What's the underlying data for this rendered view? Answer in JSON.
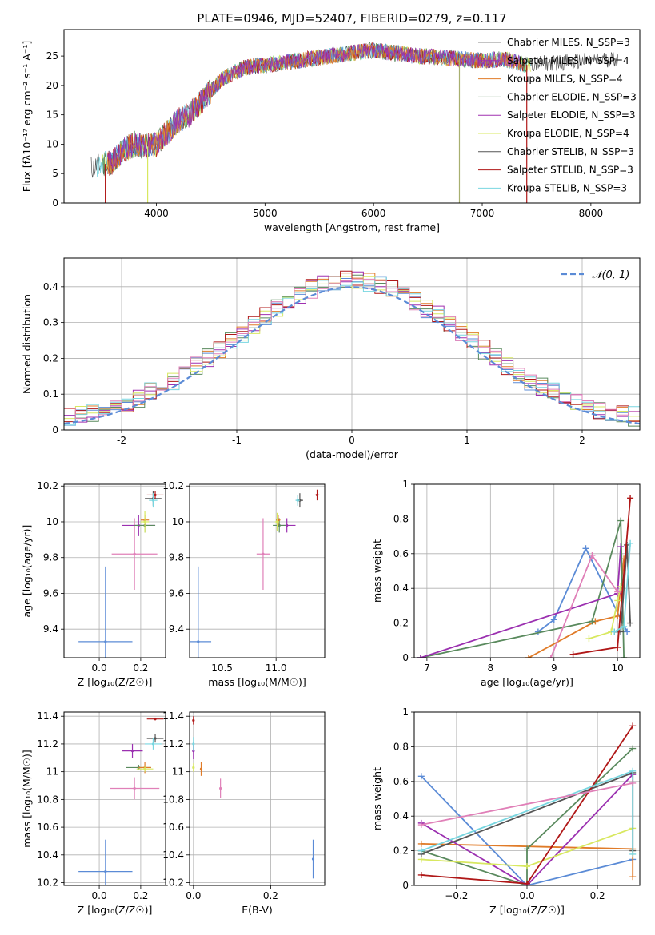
{
  "figure": {
    "title": "PLATE=0946, MJD=52407, FIBERID=0279, z=0.117"
  },
  "colors": {
    "Chabrier MILES": "#5b8bd6",
    "Salpeter MILES": "#9b30b0",
    "Kroupa MILES": "#e07b28",
    "Chabrier ELODIE": "#5a8a5e",
    "Salpeter ELODIE": "#a030b0",
    "Kroupa ELODIE": "#d8e860",
    "Chabrier STELIB": "#555555",
    "Salpeter STELIB": "#b01818",
    "Kroupa STELIB": "#78d6e0",
    "pink": "#e080b8",
    "gaussian": "#5b8bd6"
  },
  "chart_data": [
    {
      "id": "spectrum",
      "type": "line",
      "title": "PLATE=0946, MJD=52407, FIBERID=0279, z=0.117",
      "xlabel": "wavelength [Angstrom, rest frame]",
      "ylabel": "Flux [fλ10⁻¹⁷ erg cm⁻² s⁻¹ A⁻¹]",
      "xlim": [
        3150,
        8450
      ],
      "ylim": [
        0,
        29.5
      ],
      "xticks": [
        4000,
        5000,
        6000,
        7000,
        8000
      ],
      "yticks": [
        0,
        5,
        10,
        15,
        20,
        25
      ],
      "legend_position": "right",
      "legend": [
        {
          "label": "Chabrier MILES, N_SSP=3",
          "color": "#888888"
        },
        {
          "label": "Salpeter MILES, N_SSP=4",
          "color": "#9b30b0"
        },
        {
          "label": "Kroupa MILES, N_SSP=4",
          "color": "#e07b28"
        },
        {
          "label": "Chabrier ELODIE, N_SSP=3",
          "color": "#5a8a5e"
        },
        {
          "label": "Salpeter ELODIE, N_SSP=3",
          "color": "#a030b0"
        },
        {
          "label": "Kroupa ELODIE, N_SSP=4",
          "color": "#d8e860"
        },
        {
          "label": "Chabrier STELIB, N_SSP=3",
          "color": "#555555"
        },
        {
          "label": "Salpeter STELIB, N_SSP=3",
          "color": "#b01818"
        },
        {
          "label": "Kroupa STELIB, N_SSP=3",
          "color": "#78d6e0"
        }
      ],
      "continuum": {
        "x": [
          3400,
          3600,
          3700,
          3800,
          3900,
          4000,
          4100,
          4200,
          4300,
          4400,
          4500,
          4600,
          4800,
          5000,
          5200,
          5400,
          5600,
          5800,
          6000,
          6200,
          6400,
          6600,
          6800,
          7000,
          7200,
          7400,
          7600,
          7800,
          8000,
          8200
        ],
        "y": [
          6,
          7,
          9,
          10,
          9.5,
          10,
          12,
          14,
          15,
          17,
          19,
          21,
          23,
          23.5,
          24,
          24.5,
          25,
          25.5,
          26,
          25.5,
          25,
          24.8,
          24.5,
          24.2,
          24.5,
          23.5,
          23.8,
          24,
          24.2,
          24.5
        ]
      },
      "line_series": [
        {
          "name": "Chabrier STELIB",
          "color": "#555555",
          "x_range": [
            3400,
            8250
          ]
        },
        {
          "name": "Kroupa STELIB",
          "color": "#78d6e0",
          "x_range": [
            3450,
            7450
          ]
        },
        {
          "name": "Kroupa ELODIE",
          "color": "#d8e860",
          "x_range": [
            3500,
            7450
          ]
        },
        {
          "name": "Chabrier ELODIE",
          "color": "#5a8a5e",
          "x_range": [
            3500,
            7450
          ]
        },
        {
          "name": "Salpeter STELIB",
          "color": "#b01818",
          "x_range": [
            3550,
            7400
          ]
        },
        {
          "name": "Chabrier MILES",
          "color": "#5b8bd6",
          "x_range": [
            3550,
            7350
          ]
        },
        {
          "name": "Kroupa MILES",
          "color": "#e07b28",
          "x_range": [
            3550,
            7350
          ]
        },
        {
          "name": "Salpeter MILES",
          "color": "#9b30b0",
          "x_range": [
            3550,
            7350
          ]
        }
      ],
      "spikes": [
        {
          "x": 3530,
          "color": "#b01818"
        },
        {
          "x": 3920,
          "color": "#d8e860"
        },
        {
          "x": 6790,
          "color": "#a8b070"
        },
        {
          "x": 7410,
          "color": "#b01818"
        }
      ]
    },
    {
      "id": "residual_hist",
      "type": "histogram",
      "xlabel": "(data-model)/error",
      "ylabel": "Normed distribution",
      "xlim": [
        -2.5,
        2.5
      ],
      "ylim": [
        0,
        0.48
      ],
      "xticks": [
        -2,
        -1,
        0,
        1,
        2
      ],
      "yticks": [
        0.0,
        0.1,
        0.2,
        0.3,
        0.4
      ],
      "bin_width": 0.1,
      "grid": true,
      "legend": [
        {
          "label": "𝒩(0, 1)",
          "color": "#5b8bd6",
          "style": "dashed"
        }
      ],
      "gaussian": {
        "mean": 0,
        "sigma": 1
      },
      "series": [
        {
          "name": "Chabrier MILES",
          "color": "#5b8bd6",
          "seed": 1
        },
        {
          "name": "Kroupa MILES",
          "color": "#e07b28",
          "seed": 2
        },
        {
          "name": "Chabrier ELODIE",
          "color": "#5a8a5e",
          "seed": 3
        },
        {
          "name": "Salpeter ELODIE",
          "color": "#a030b0",
          "seed": 4
        },
        {
          "name": "Kroupa ELODIE",
          "color": "#d8e860",
          "seed": 5
        },
        {
          "name": "Salpeter STELIB",
          "color": "#b01818",
          "seed": 6
        },
        {
          "name": "Kroupa STELIB",
          "color": "#78d6e0",
          "seed": 7
        },
        {
          "name": "pink",
          "color": "#e080b8",
          "seed": 8
        }
      ]
    },
    {
      "id": "age_vs_Z",
      "type": "scatter",
      "xlabel": "Z [log₁₀(Z/Z☉)]",
      "ylabel": "age  [log₁₀(age/yr)]",
      "xlim": [
        -0.17,
        0.32
      ],
      "ylim": [
        9.24,
        10.21
      ],
      "xticks": [
        0.0,
        0.2
      ],
      "xticklabels": [
        "0.0",
        "0.2"
      ],
      "yticks": [
        9.4,
        9.6,
        9.8,
        10.0,
        10.2
      ],
      "grid": true,
      "points": [
        {
          "x": 0.03,
          "y": 9.33,
          "xerr": 0.13,
          "yerr": 0.42,
          "color": "#5b8bd6"
        },
        {
          "x": 0.17,
          "y": 9.82,
          "xerr": 0.11,
          "yerr": 0.2,
          "color": "#e080b8"
        },
        {
          "x": 0.19,
          "y": 9.98,
          "xerr": 0.08,
          "yerr": 0.06,
          "color": "#9b30b0"
        },
        {
          "x": 0.22,
          "y": 9.98,
          "xerr": 0.05,
          "yerr": 0.04,
          "color": "#5a8a5e"
        },
        {
          "x": 0.22,
          "y": 10.01,
          "xerr": 0.02,
          "yerr": 0.03,
          "color": "#e07b28"
        },
        {
          "x": 0.22,
          "y": 10.0,
          "xerr": 0.02,
          "yerr": 0.06,
          "color": "#d8e860"
        },
        {
          "x": 0.26,
          "y": 10.13,
          "xerr": 0.04,
          "yerr": 0.04,
          "color": "#555555"
        },
        {
          "x": 0.27,
          "y": 10.15,
          "xerr": 0.04,
          "yerr": 0.02,
          "color": "#b01818"
        },
        {
          "x": 0.26,
          "y": 10.12,
          "xerr": 0.02,
          "yerr": 0.04,
          "color": "#78d6e0"
        }
      ]
    },
    {
      "id": "age_vs_mass",
      "type": "scatter",
      "xlabel": "mass [log₁₀(M/M☉)]",
      "ylabel": "",
      "xlim": [
        10.2,
        11.45
      ],
      "ylim": [
        9.24,
        10.21
      ],
      "xticks": [
        10.5,
        11.0
      ],
      "xticklabels": [
        "10.5",
        "11.0"
      ],
      "yticks": [
        9.4,
        9.6,
        9.8,
        10.0,
        10.2
      ],
      "grid": true,
      "points": [
        {
          "x": 10.28,
          "y": 9.33,
          "xerr": 0.12,
          "yerr": 0.42,
          "color": "#5b8bd6"
        },
        {
          "x": 10.88,
          "y": 9.82,
          "xerr": 0.06,
          "yerr": 0.2,
          "color": "#e080b8"
        },
        {
          "x": 11.1,
          "y": 9.98,
          "xerr": 0.08,
          "yerr": 0.04,
          "color": "#9b30b0"
        },
        {
          "x": 11.03,
          "y": 9.98,
          "xerr": 0.06,
          "yerr": 0.04,
          "color": "#5a8a5e"
        },
        {
          "x": 11.02,
          "y": 10.01,
          "xerr": 0.02,
          "yerr": 0.03,
          "color": "#e07b28"
        },
        {
          "x": 11.01,
          "y": 10.0,
          "xerr": 0.02,
          "yerr": 0.05,
          "color": "#d8e860"
        },
        {
          "x": 11.22,
          "y": 10.12,
          "xerr": 0.03,
          "yerr": 0.04,
          "color": "#555555"
        },
        {
          "x": 11.38,
          "y": 10.15,
          "xerr": 0.02,
          "yerr": 0.03,
          "color": "#b01818"
        },
        {
          "x": 11.2,
          "y": 10.12,
          "xerr": 0.02,
          "yerr": 0.03,
          "color": "#78d6e0"
        }
      ]
    },
    {
      "id": "weight_vs_age",
      "type": "line",
      "xlabel": "age  [log₁₀(age/yr)]",
      "ylabel": "mass weight",
      "xlim": [
        6.8,
        10.35
      ],
      "ylim": [
        0,
        1.0
      ],
      "xticks": [
        7,
        8,
        9,
        10
      ],
      "xticklabels": [
        "7",
        "8",
        "9",
        "10"
      ],
      "yticks": [
        0.0,
        0.2,
        0.4,
        0.6,
        0.8,
        1.0
      ],
      "grid": true,
      "series": [
        {
          "color": "#5b8bd6",
          "x": [
            8.75,
            9.0,
            9.5,
            10.15
          ],
          "y": [
            0.15,
            0.22,
            0.63,
            0.15
          ]
        },
        {
          "color": "#e07b28",
          "x": [
            8.6,
            9.65,
            10.0,
            10.1
          ],
          "y": [
            0.0,
            0.21,
            0.24,
            0.57
          ]
        },
        {
          "color": "#5a8a5e",
          "x": [
            6.9,
            9.6,
            10.05,
            10.1
          ],
          "y": [
            0.0,
            0.21,
            0.79,
            0.0
          ]
        },
        {
          "color": "#9b30b0",
          "x": [
            6.9,
            10.0,
            10.05
          ],
          "y": [
            0.0,
            0.37,
            0.64
          ]
        },
        {
          "color": "#d8e860",
          "x": [
            9.55,
            9.9,
            10.0,
            10.05
          ],
          "y": [
            0.11,
            0.15,
            0.33,
            0.41
          ]
        },
        {
          "color": "#555555",
          "x": [
            9.95,
            10.05,
            10.15,
            10.2
          ],
          "y": [
            0.15,
            0.15,
            0.65,
            0.2
          ]
        },
        {
          "color": "#b01818",
          "x": [
            9.3,
            10.0,
            10.2
          ],
          "y": [
            0.02,
            0.06,
            0.92
          ]
        },
        {
          "color": "#78d6e0",
          "x": [
            9.95,
            10.1,
            10.2
          ],
          "y": [
            0.15,
            0.18,
            0.66
          ]
        },
        {
          "color": "#e080b8",
          "x": [
            8.95,
            9.6,
            10.0
          ],
          "y": [
            0.0,
            0.59,
            0.38
          ]
        }
      ]
    },
    {
      "id": "mass_vs_Z",
      "type": "scatter",
      "xlabel": "Z [log₁₀(Z/Z☉)]",
      "ylabel": "mass [log₁₀(M/M☉)]",
      "xlim": [
        -0.17,
        0.32
      ],
      "ylim": [
        10.18,
        11.43
      ],
      "xticks": [
        0.0,
        0.2
      ],
      "xticklabels": [
        "0.0",
        "0.2"
      ],
      "yticks": [
        10.2,
        10.4,
        10.6,
        10.8,
        11.0,
        11.2,
        11.4
      ],
      "grid": true,
      "points": [
        {
          "x": 0.03,
          "y": 10.28,
          "xerr": 0.13,
          "yerr": 0.23,
          "color": "#5b8bd6"
        },
        {
          "x": 0.17,
          "y": 10.88,
          "xerr": 0.12,
          "yerr": 0.08,
          "color": "#e080b8"
        },
        {
          "x": 0.16,
          "y": 11.15,
          "xerr": 0.05,
          "yerr": 0.05,
          "color": "#9b30b0"
        },
        {
          "x": 0.19,
          "y": 11.03,
          "xerr": 0.06,
          "yerr": 0.02,
          "color": "#5a8a5e"
        },
        {
          "x": 0.22,
          "y": 11.03,
          "xerr": 0.03,
          "yerr": 0.04,
          "color": "#e07b28"
        },
        {
          "x": 0.22,
          "y": 11.02,
          "xerr": 0.04,
          "yerr": 0.02,
          "color": "#d8e860"
        },
        {
          "x": 0.27,
          "y": 11.24,
          "xerr": 0.04,
          "yerr": 0.03,
          "color": "#555555"
        },
        {
          "x": 0.27,
          "y": 11.38,
          "xerr": 0.04,
          "yerr": 0.01,
          "color": "#b01818"
        },
        {
          "x": 0.26,
          "y": 11.2,
          "xerr": 0.04,
          "yerr": 0.04,
          "color": "#78d6e0"
        }
      ]
    },
    {
      "id": "mass_vs_ebv",
      "type": "scatter",
      "xlabel": "E(B-V)",
      "ylabel": "",
      "xlim": [
        -0.01,
        0.34
      ],
      "ylim": [
        10.18,
        11.43
      ],
      "xticks": [
        0.0,
        0.2
      ],
      "xticklabels": [
        "0.0",
        "0.2"
      ],
      "yticks": [
        10.2,
        10.4,
        10.6,
        10.8,
        11.0,
        11.2,
        11.4
      ],
      "grid": true,
      "points": [
        {
          "x": 0.31,
          "y": 10.37,
          "xerr": 0,
          "yerr": 0.14,
          "color": "#5b8bd6"
        },
        {
          "x": 0.07,
          "y": 10.88,
          "xerr": 0,
          "yerr": 0.07,
          "color": "#e080b8"
        },
        {
          "x": 0.02,
          "y": 11.02,
          "xerr": 0,
          "yerr": 0.05,
          "color": "#e07b28"
        },
        {
          "x": 0.0,
          "y": 11.15,
          "xerr": 0,
          "yerr": 0.06,
          "color": "#9b30b0"
        },
        {
          "x": 0.0,
          "y": 11.03,
          "xerr": 0,
          "yerr": 0.03,
          "color": "#d8e860"
        },
        {
          "x": 0.0,
          "y": 11.2,
          "xerr": 0,
          "yerr": 0.05,
          "color": "#78d6e0"
        },
        {
          "x": 0.0,
          "y": 11.37,
          "xerr": 0,
          "yerr": 0.03,
          "color": "#b01818"
        }
      ]
    },
    {
      "id": "weight_vs_Z",
      "type": "line",
      "xlabel": "Z [log₁₀(Z/Z☉)]",
      "ylabel": "mass weight",
      "xlim": [
        -0.32,
        0.32
      ],
      "ylim": [
        0,
        1.0
      ],
      "xticks": [
        -0.2,
        0.0,
        0.2
      ],
      "xticklabels": [
        "−0.2",
        "0.0",
        "0.2"
      ],
      "yticks": [
        0.0,
        0.2,
        0.4,
        0.6,
        0.8,
        1.0
      ],
      "grid": true,
      "series": [
        {
          "color": "#5b8bd6",
          "x": [
            -0.3,
            0.0,
            0.3
          ],
          "y": [
            0.63,
            0.0,
            0.15
          ]
        },
        {
          "color": "#e07b28",
          "x": [
            -0.3,
            0.3,
            0.3
          ],
          "y": [
            0.24,
            0.21,
            0.05
          ]
        },
        {
          "color": "#5a8a5e",
          "x": [
            -0.3,
            0.0,
            0.0,
            0.3
          ],
          "y": [
            0.2,
            0.0,
            0.21,
            0.79
          ]
        },
        {
          "color": "#9b30b0",
          "x": [
            -0.3,
            0.0,
            0.3
          ],
          "y": [
            0.36,
            0.0,
            0.64
          ]
        },
        {
          "color": "#d8e860",
          "x": [
            -0.3,
            0.0,
            0.3
          ],
          "y": [
            0.15,
            0.11,
            0.33
          ]
        },
        {
          "color": "#555555",
          "x": [
            -0.3,
            0.3,
            0.3
          ],
          "y": [
            0.18,
            0.65,
            0.2
          ]
        },
        {
          "color": "#b01818",
          "x": [
            -0.3,
            0.0,
            0.3
          ],
          "y": [
            0.06,
            0.01,
            0.92
          ]
        },
        {
          "color": "#78d6e0",
          "x": [
            -0.3,
            0.3,
            0.3
          ],
          "y": [
            0.2,
            0.66,
            0.18
          ]
        },
        {
          "color": "#e080b8",
          "x": [
            -0.3,
            0.3
          ],
          "y": [
            0.35,
            0.59
          ]
        }
      ]
    }
  ]
}
